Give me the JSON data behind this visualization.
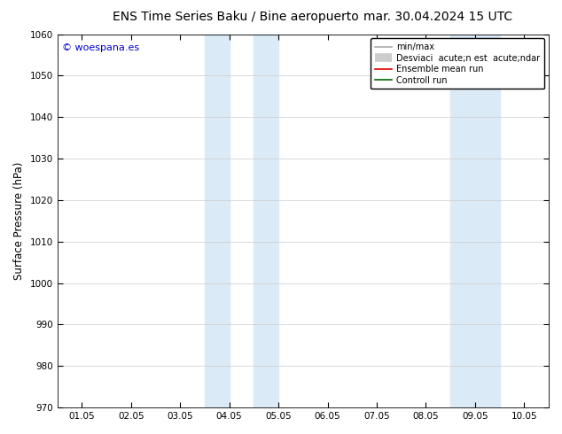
{
  "title_left": "ENS Time Series Baku / Bine aeropuerto",
  "title_right": "mar. 30.04.2024 15 UTC",
  "ylabel": "Surface Pressure (hPa)",
  "ylim": [
    970,
    1060
  ],
  "yticks": [
    970,
    980,
    990,
    1000,
    1010,
    1020,
    1030,
    1040,
    1050,
    1060
  ],
  "xtick_labels": [
    "01.05",
    "02.05",
    "03.05",
    "04.05",
    "05.05",
    "06.05",
    "07.05",
    "08.05",
    "09.05",
    "10.05"
  ],
  "xtick_positions": [
    1,
    2,
    3,
    4,
    5,
    6,
    7,
    8,
    9,
    10
  ],
  "xlim": [
    0.5,
    10.5
  ],
  "shaded_bands": [
    {
      "x_start": 3.5,
      "x_end": 4.0,
      "color": "#daeaf7"
    },
    {
      "x_start": 4.5,
      "x_end": 5.0,
      "color": "#daeaf7"
    },
    {
      "x_start": 8.5,
      "x_end": 9.0,
      "color": "#daeaf7"
    },
    {
      "x_start": 9.0,
      "x_end": 9.5,
      "color": "#daeaf7"
    }
  ],
  "watermark_text": "© woespana.es",
  "watermark_color": "#0000cc",
  "legend_line1_label": "min/max",
  "legend_line1_color": "#aaaaaa",
  "legend_line2_label": "Desviaci  acute;n est  acute;ndar",
  "legend_line2_color": "#cccccc",
  "legend_line3_label": "Ensemble mean run",
  "legend_line3_color": "#dd0000",
  "legend_line4_label": "Controll run",
  "legend_line4_color": "#006600",
  "background_color": "#ffffff",
  "grid_color": "#cccccc",
  "title_fontsize": 10,
  "tick_fontsize": 7.5,
  "ylabel_fontsize": 8.5,
  "legend_fontsize": 7
}
